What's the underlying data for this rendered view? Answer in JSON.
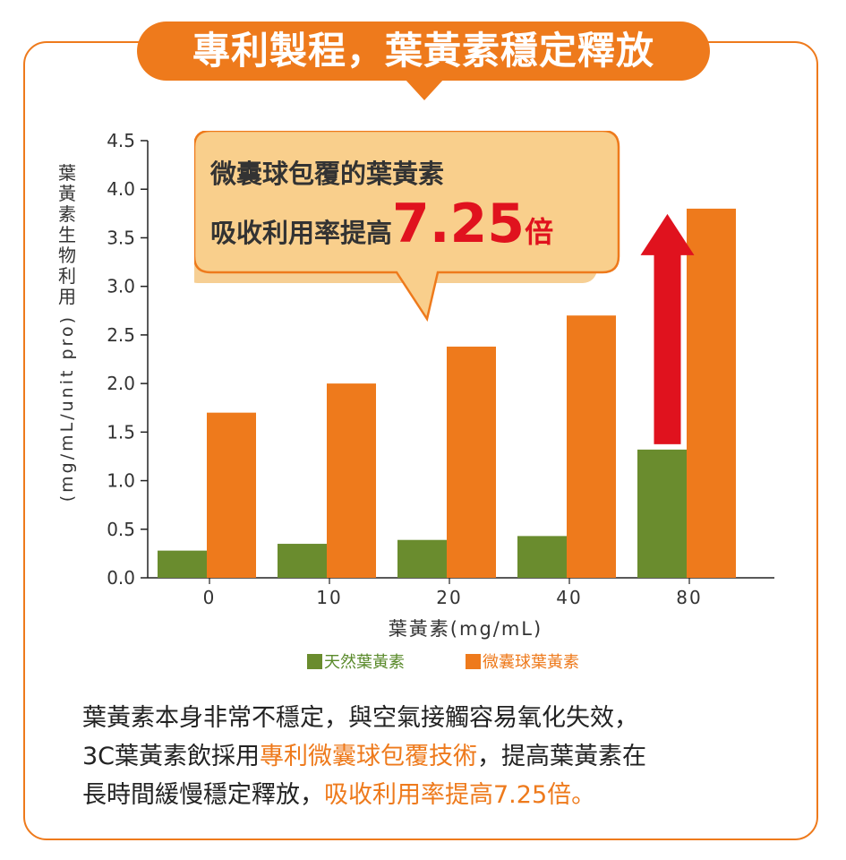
{
  "header": {
    "title": "專利製程，葉黃素穩定釋放"
  },
  "callout": {
    "line1": "微囊球包覆的葉黃素",
    "line2_prefix": "吸收利用率提高",
    "line2_value": "7.25",
    "line2_suffix": "倍"
  },
  "chart_data": {
    "type": "bar",
    "title": "",
    "xlabel": "葉黃素(mg/mL)",
    "ylabel_cjk": "葉黃素生物利用",
    "ylabel_unit": "(mg/mL/unit pro)",
    "categories": [
      "0",
      "10",
      "20",
      "40",
      "80"
    ],
    "ylim": [
      0,
      4.5
    ],
    "yticks": [
      "0.0",
      "0.5",
      "1.0",
      "1.5",
      "2.0",
      "2.5",
      "3.0",
      "3.5",
      "4.0",
      "4.5"
    ],
    "grid": false,
    "legend_position": "bottom",
    "series": [
      {
        "name": "天然葉黃素",
        "color": "#6a8c2e",
        "values": [
          0.28,
          0.35,
          0.39,
          0.43,
          1.32
        ]
      },
      {
        "name": "微囊球葉黃素",
        "color": "#ee7a1c",
        "values": [
          1.7,
          2.0,
          2.38,
          2.7,
          3.8
        ]
      }
    ],
    "annotation_arrow_color": "#e0121e"
  },
  "description": {
    "line1": "葉黃素本身非常不穩定，與空氣接觸容易氧化失效，",
    "line2_a": "3C葉黃素飲採用",
    "line2_b": "專利微囊球包覆技術",
    "line2_c": "，提高葉黃素在",
    "line3_a": "長時間緩慢穩定釋放，",
    "line3_b": "吸收利用率提高7.25倍。"
  }
}
